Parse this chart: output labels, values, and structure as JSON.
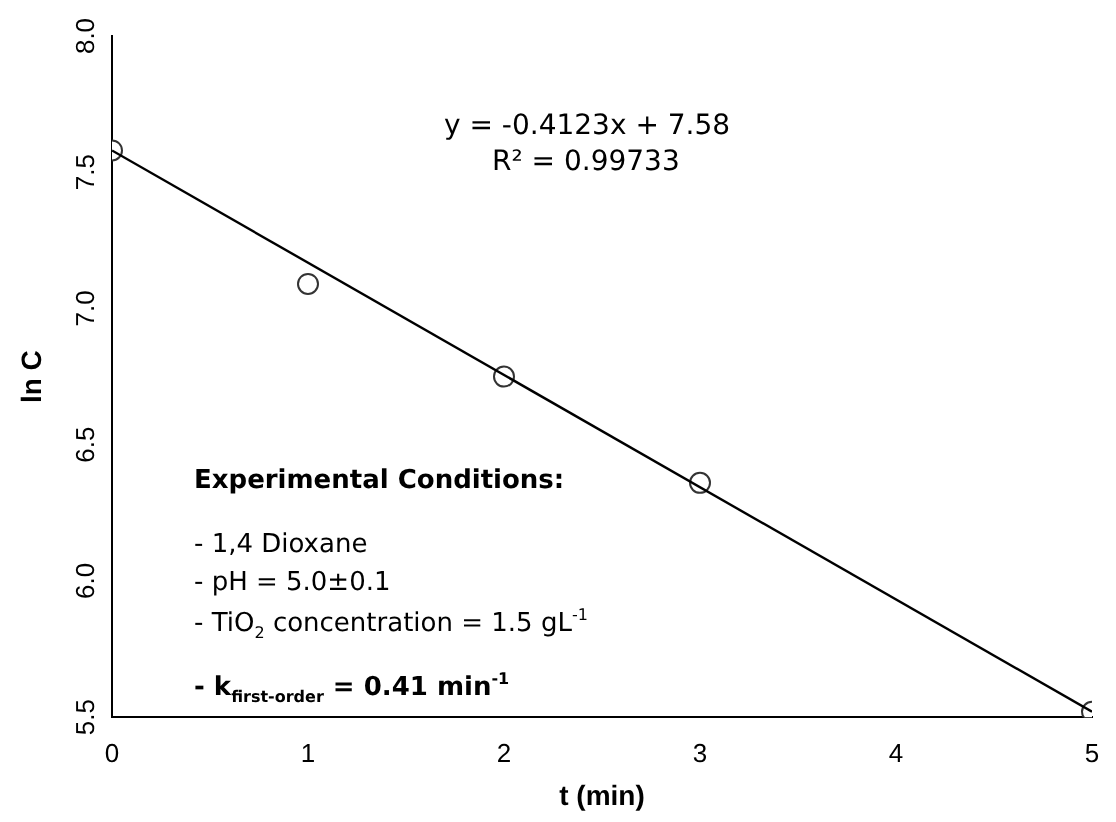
{
  "chart_data": {
    "type": "scatter",
    "xlabel": "t (min)",
    "ylabel": "ln C",
    "series": [
      {
        "color": "#333333",
        "x": [
          0,
          1,
          2,
          3,
          5
        ],
        "values": [
          7.58,
          7.09,
          6.75,
          6.36,
          5.52
        ],
        "marker": "circle"
      },
      {
        "type": "line",
        "color": "#000000",
        "x": [
          0,
          5
        ],
        "values": [
          7.58,
          5.52
        ],
        "marker": "none",
        "line_style": "solid"
      }
    ],
    "xlim": [
      0,
      5
    ],
    "xticks": [
      0,
      1,
      2,
      3,
      4,
      5
    ],
    "ylim": [
      5.5,
      8.0
    ],
    "yticks": [
      5.5,
      {
        "value": 6,
        "label": "6.0"
      },
      6.5,
      {
        "value": 7,
        "label": "7.0"
      },
      7.5,
      {
        "value": 8,
        "label": "8.0"
      }
    ],
    "grid": false,
    "legend": false,
    "annotations": [
      "y = -0.4123x + 7.58",
      "R² = 0.99733",
      "Experimental Conditions:",
      "- 1,4 Dioxane",
      "- pH = 5.0±0.1",
      "- TiO$_{2}$ concentration = 1.5 gL$^{-1}$",
      "- k$_{first-order}$ = 0.41 min$^{-1}$"
    ]
  }
}
